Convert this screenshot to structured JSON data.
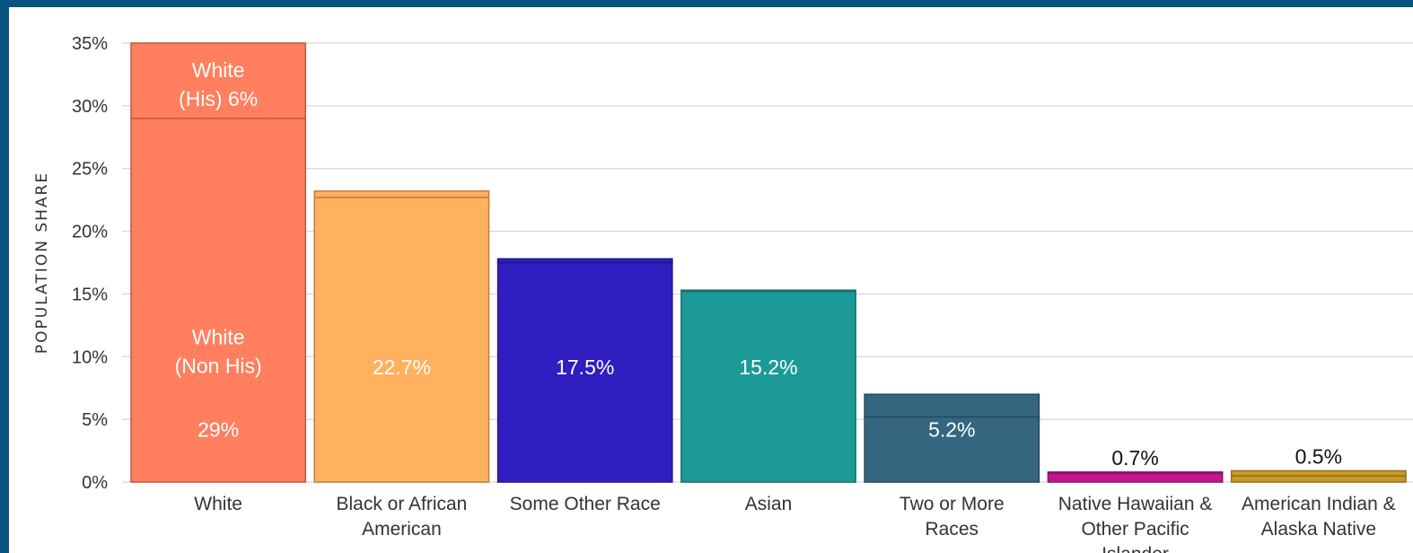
{
  "chart_data": {
    "type": "bar",
    "stacked": true,
    "title": "",
    "xlabel": "",
    "ylabel": "POPULATION SHARE",
    "ylim": [
      0,
      35
    ],
    "yticks": [
      0,
      5,
      10,
      15,
      20,
      25,
      30,
      35
    ],
    "ytick_labels": [
      "0%",
      "5%",
      "10%",
      "15%",
      "20%",
      "25%",
      "30%",
      "35%"
    ],
    "grid": true,
    "categories": [
      {
        "label": [
          "White"
        ],
        "color": "#ff7f5e",
        "segments": [
          {
            "value": 29,
            "label": [
              "White",
              "(Non His)",
              "29%"
            ]
          },
          {
            "value": 6,
            "label": [
              "White",
              "(His) 6%"
            ]
          }
        ]
      },
      {
        "label": [
          "Black or African",
          "American"
        ],
        "color": "#ffb15e",
        "segments": [
          {
            "value": 22.7,
            "label": [
              "22.7%"
            ]
          },
          {
            "value": 0.5,
            "label": []
          }
        ]
      },
      {
        "label": [
          "Some Other Race"
        ],
        "color": "#2f1ec0",
        "segments": [
          {
            "value": 17.5,
            "label": [
              "17.5%"
            ]
          },
          {
            "value": 0.3,
            "label": []
          }
        ]
      },
      {
        "label": [
          "Asian"
        ],
        "color": "#1c9a98",
        "segments": [
          {
            "value": 15.2,
            "label": [
              "15.2%"
            ]
          },
          {
            "value": 0.1,
            "label": []
          }
        ]
      },
      {
        "label": [
          "Two or More",
          "Races"
        ],
        "color": "#346680",
        "segments": [
          {
            "value": 5.2,
            "label": [
              "5.2%"
            ]
          },
          {
            "value": 1.8,
            "label": []
          }
        ]
      },
      {
        "label": [
          "Native Hawaiian &",
          "Other Pacific",
          "Islander"
        ],
        "color": "#c4168c",
        "top_label": "0.7%",
        "segments": [
          {
            "value": 0.7,
            "label": []
          },
          {
            "value": 0.1,
            "label": []
          }
        ]
      },
      {
        "label": [
          "American Indian &",
          "Alaska Native"
        ],
        "color": "#c89a28",
        "top_label": "0.5%",
        "segments": [
          {
            "value": 0.5,
            "label": []
          },
          {
            "value": 0.4,
            "label": []
          }
        ]
      }
    ]
  }
}
